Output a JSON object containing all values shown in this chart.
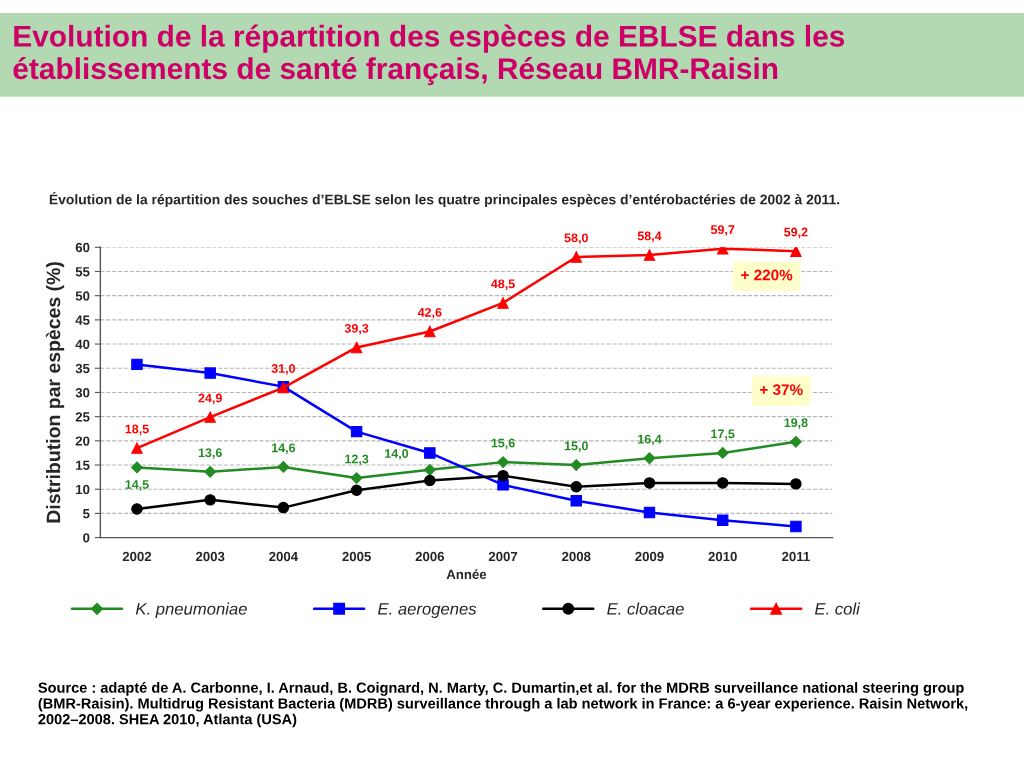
{
  "chart_data": {
    "type": "line",
    "title": "Evolution de la répartition des espèces de EBLSE dans les établissements de santé français, Réseau BMR-Raisin",
    "subtitle": "Évolution de la répartition des souches d’EBLSE selon les quatre principales espèces d’entérobactéries de 2002 à 2011.",
    "xlabel": "Année",
    "ylabel": "Distribution par espèces (%)",
    "categories": [
      "2002",
      "2003",
      "2004",
      "2005",
      "2006",
      "2007",
      "2008",
      "2009",
      "2010",
      "2011"
    ],
    "series": [
      {
        "name": "K. pneumoniae",
        "color": "#228b22",
        "marker": "diamond",
        "values": [
          14.5,
          13.6,
          14.6,
          12.3,
          14.0,
          15.6,
          15.0,
          16.4,
          17.5,
          19.8
        ],
        "value_labels": [
          "14,5",
          "13,6",
          "14,6",
          "12,3",
          "14,0",
          "15,6",
          "15,0",
          "16,4",
          "17,5",
          "19,8"
        ]
      },
      {
        "name": "E. aerogenes",
        "color": "#0000ff",
        "marker": "square",
        "values": [
          35.8,
          34.0,
          31.2,
          21.9,
          17.5,
          10.9,
          7.6,
          5.2,
          3.6,
          2.3
        ]
      },
      {
        "name": "E. cloacae",
        "color": "#000000",
        "marker": "circle",
        "values": [
          5.9,
          7.8,
          6.2,
          9.8,
          11.8,
          12.8,
          10.5,
          11.3,
          11.3,
          11.1
        ]
      },
      {
        "name": "E. coli",
        "color": "#ff0000",
        "marker": "triangle",
        "values": [
          18.5,
          24.9,
          31.0,
          39.3,
          42.6,
          48.5,
          58.0,
          58.4,
          59.7,
          59.2
        ],
        "value_labels": [
          "18,5",
          "24,9",
          "31,0",
          "39,3",
          "42,6",
          "48,5",
          "58,0",
          "58,4",
          "59,7",
          "59,2"
        ]
      }
    ],
    "ylim": [
      0,
      60
    ],
    "yticks": [
      0,
      5,
      10,
      15,
      20,
      25,
      30,
      35,
      40,
      45,
      50,
      55,
      60
    ],
    "grid": "y",
    "legend": "bottom",
    "line_style": "solid",
    "annotations": [
      "+ 220%",
      "+ 37%",
      "Source : adapté de A. Carbonne, I. Arnaud, B. Coignard, N. Marty, C. Dumartin,et al. for the MDRB surveillance national steering group (BMR-Raisin). Multidrug Resistant Bacteria (MDRB) surveillance through a lab network in France: a 6-year experience. Raisin Network, 2002–2008. SHEA 2010, Atlanta (USA)"
    ]
  }
}
